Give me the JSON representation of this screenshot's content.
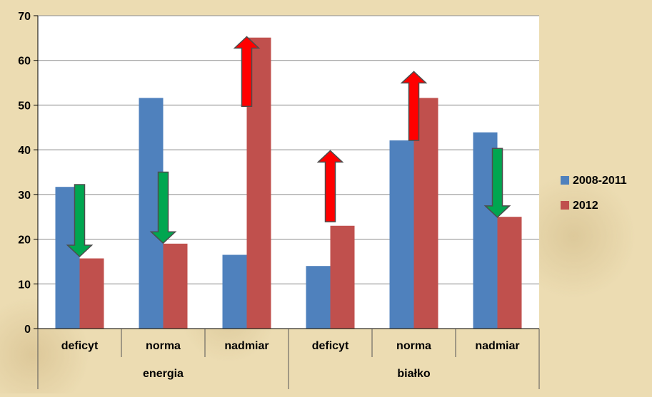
{
  "colors": {
    "series_2008_2011": "#4f81bd",
    "series_2012": "#c0504d",
    "arrow_up": "#ff0000",
    "arrow_down": "#00a650",
    "plot_background": "#ffffff",
    "gridline": "#8c8c8c"
  },
  "chart_data": {
    "type": "bar",
    "title": "",
    "xlabel": "",
    "ylabel": "",
    "ylim": [
      0,
      70
    ],
    "y_ticks": [
      0,
      10,
      20,
      30,
      40,
      50,
      60,
      70
    ],
    "grid": true,
    "legend_position": "right",
    "groups": [
      {
        "label": "energia",
        "categories": [
          "deficyt",
          "norma",
          "nadmiar"
        ]
      },
      {
        "label": "białko",
        "categories": [
          "deficyt",
          "norma",
          "nadmiar"
        ]
      }
    ],
    "categories": [
      "deficyt",
      "norma",
      "nadmiar",
      "deficyt",
      "norma",
      "nadmiar"
    ],
    "series": [
      {
        "name": "2008-2011",
        "values": [
          31.7,
          51.6,
          16.5,
          14.0,
          42.1,
          43.9
        ]
      },
      {
        "name": "2012",
        "values": [
          15.7,
          19.0,
          65.1,
          23.0,
          51.6,
          25.0
        ]
      }
    ],
    "arrows": [
      {
        "category_index": 0,
        "direction": "down",
        "from": 32.2,
        "to": 16.1
      },
      {
        "category_index": 1,
        "direction": "down",
        "from": 35.0,
        "to": 19.1
      },
      {
        "category_index": 2,
        "direction": "up",
        "from": 49.7,
        "to": 65.3
      },
      {
        "category_index": 3,
        "direction": "up",
        "from": 23.9,
        "to": 39.8
      },
      {
        "category_index": 4,
        "direction": "up",
        "from": 42.1,
        "to": 57.5
      },
      {
        "category_index": 5,
        "direction": "down",
        "from": 40.3,
        "to": 24.9
      }
    ]
  }
}
